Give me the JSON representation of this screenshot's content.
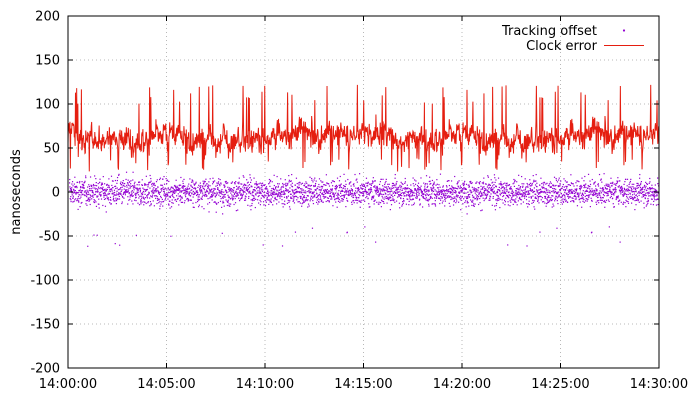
{
  "chart_data": {
    "type": "line",
    "title": "",
    "xlabel": "",
    "ylabel": "nanoseconds",
    "x_range": [
      "14:00:00",
      "14:30:00"
    ],
    "ylim": [
      -200,
      200
    ],
    "x_ticks": [
      "14:00:00",
      "14:05:00",
      "14:10:00",
      "14:15:00",
      "14:20:00",
      "14:25:00",
      "14:30:00"
    ],
    "y_ticks": [
      -200,
      -150,
      -100,
      -50,
      0,
      50,
      100,
      150,
      200
    ],
    "grid": true,
    "legend_position": "top-right",
    "series": [
      {
        "name": "Tracking offset",
        "style": "points",
        "color": "#9400d3",
        "summary": {
          "center": 0,
          "spread": [
            -30,
            30
          ],
          "min": -62,
          "max": 40
        }
      },
      {
        "name": "Clock error",
        "style": "line",
        "color": "#e51e10",
        "summary": {
          "center": 65,
          "spread": [
            25,
            110
          ],
          "min": 15,
          "max": 125
        }
      }
    ]
  }
}
